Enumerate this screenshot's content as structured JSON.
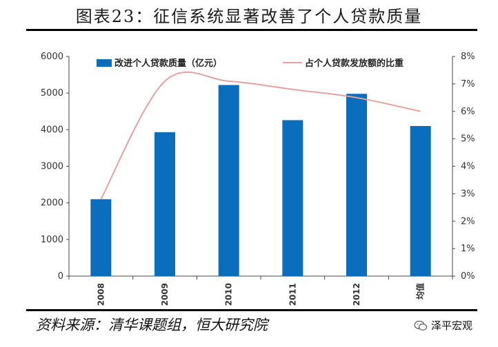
{
  "title": "图表23：征信系统显著改善了个人贷款质量",
  "source": "资料来源：清华课题组，恒大研究院",
  "brand": {
    "text": "泽平宏观",
    "icon": "wechat-icon"
  },
  "colors": {
    "bar": "#0a6ebd",
    "line": "#e8a0a0",
    "axis": "#444444"
  },
  "chart_data": {
    "type": "bar",
    "categories": [
      "2008",
      "2009",
      "2010",
      "2011",
      "2012",
      "均值"
    ],
    "series": [
      {
        "name": "改进个人贷款质量（亿元）",
        "type": "bar",
        "axis": "left",
        "values": [
          2100,
          3930,
          5220,
          4260,
          4980,
          4100
        ]
      },
      {
        "name": "占个人贷款发放额的比重",
        "type": "line",
        "axis": "right",
        "values": [
          0.028,
          0.071,
          0.071,
          0.068,
          0.065,
          0.06
        ]
      }
    ],
    "ylim_left": [
      0,
      6000
    ],
    "yticks_left": [
      "0",
      "1000",
      "2000",
      "3000",
      "4000",
      "5000",
      "6000"
    ],
    "ylim_right": [
      0,
      0.08
    ],
    "yticks_right": [
      "0%",
      "1%",
      "2%",
      "3%",
      "4%",
      "5%",
      "6%",
      "7%",
      "8%"
    ],
    "grid": false,
    "legend": "top"
  }
}
